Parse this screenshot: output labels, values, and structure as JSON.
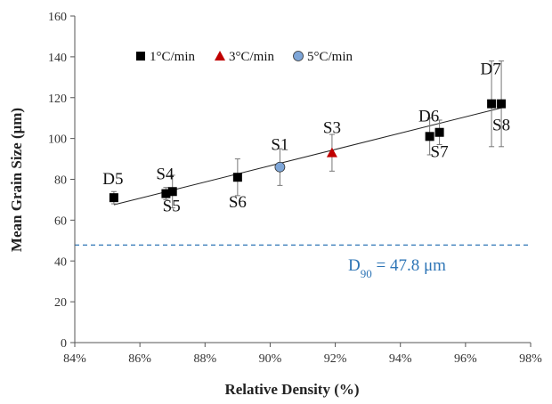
{
  "chart_data": {
    "type": "scatter",
    "xlabel": "Relative Density (%)",
    "ylabel": "Mean Grain Size (μm)",
    "xlim": [
      84,
      98
    ],
    "ylim": [
      0,
      160
    ],
    "x_ticks": [
      84,
      86,
      88,
      90,
      92,
      94,
      96,
      98
    ],
    "x_tick_labels": [
      "84%",
      "86%",
      "88%",
      "90%",
      "92%",
      "94%",
      "96%",
      "98%"
    ],
    "y_ticks": [
      0,
      20,
      40,
      60,
      80,
      100,
      120,
      140,
      160
    ],
    "y_tick_labels": [
      "0",
      "20",
      "40",
      "60",
      "80",
      "100",
      "120",
      "140",
      "160"
    ],
    "grid": false,
    "legend_position": "top-left",
    "series": [
      {
        "name": "1°C/min",
        "marker": "square",
        "color": "#000000",
        "points": [
          {
            "label": "D5",
            "x": 85.2,
            "y": 71,
            "err": 3
          },
          {
            "label": "S4",
            "x": 86.8,
            "y": 73,
            "err": 3
          },
          {
            "label": "S5",
            "x": 87.0,
            "y": 74,
            "err": 8
          },
          {
            "label": "S6",
            "x": 89.0,
            "y": 81,
            "err": 9
          },
          {
            "label": "D6",
            "x": 94.9,
            "y": 101,
            "err": 9
          },
          {
            "label": "S7",
            "x": 95.2,
            "y": 103,
            "err": 6
          },
          {
            "label": "D7",
            "x": 96.8,
            "y": 117,
            "err": 21
          },
          {
            "label": "S8",
            "x": 97.1,
            "y": 117,
            "err": 21
          }
        ]
      },
      {
        "name": "3°C/min",
        "marker": "triangle",
        "color": "#c00000",
        "points": [
          {
            "label": "S3",
            "x": 91.9,
            "y": 93,
            "err": 9
          }
        ]
      },
      {
        "name": "5°C/min",
        "marker": "circle",
        "color": "#7ea6d8",
        "points": [
          {
            "label": "S1",
            "x": 90.3,
            "y": 86,
            "err": 9
          }
        ]
      }
    ],
    "trendline": {
      "type": "linear",
      "x_start": 85.2,
      "y_start": 67.5,
      "x_end": 97.1,
      "y_end": 115
    },
    "reference_line": {
      "y": 47.8,
      "style": "dashed",
      "color": "#2e75b6",
      "label_parts": [
        "D",
        "90",
        " = 47.8 μm"
      ]
    }
  }
}
